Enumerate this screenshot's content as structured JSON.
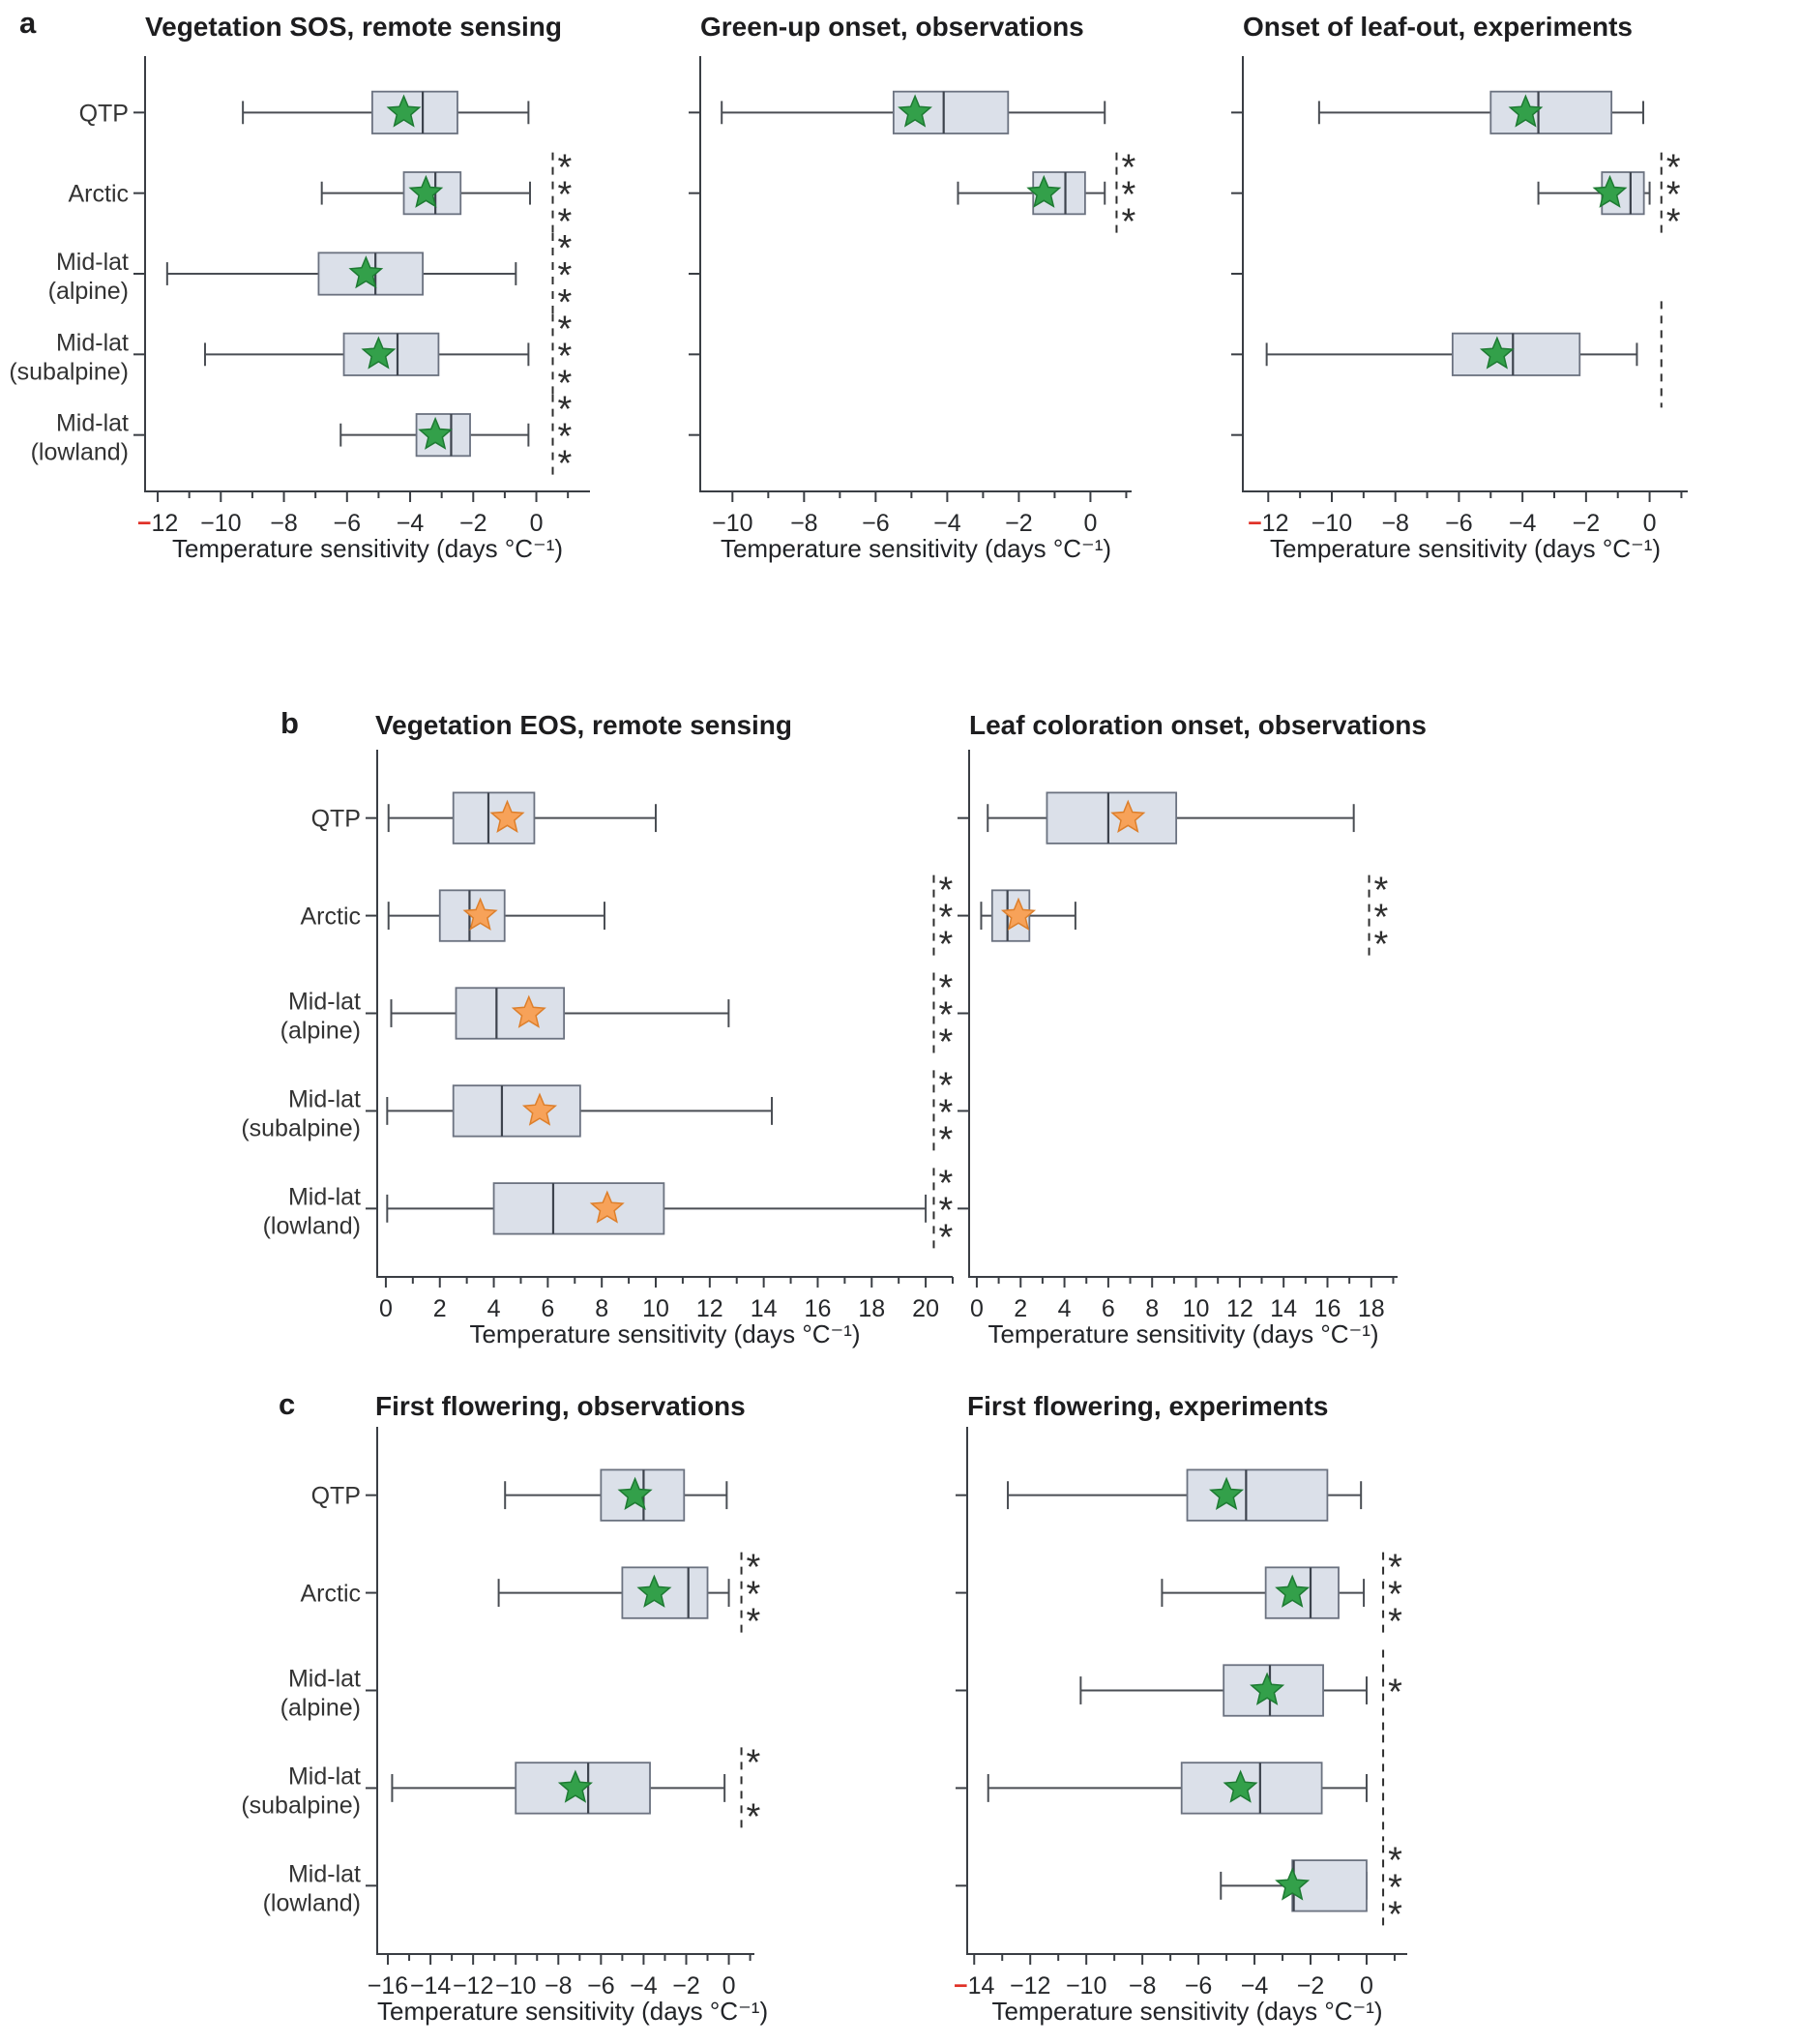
{
  "figure": {
    "panel_labels": [
      "a",
      "b",
      "c"
    ]
  },
  "colors": {
    "box_fill": "#dbe0e9",
    "box_edge": "#6b7280",
    "median": "#3d434d",
    "whisker": "#4a4e54",
    "axis": "#3a3e44",
    "tick_text": "#26282b",
    "label_text": "#333333",
    "green_fill": "#33a04a",
    "green_edge": "#1d7a32",
    "orange_fill": "#f7a259",
    "orange_edge": "#dd7f2b",
    "red": "#e03127",
    "sig": "#2e2e2e"
  },
  "chart_data": [
    {
      "type": "boxplot-horizontal",
      "panel": "a",
      "title": "Vegetation SOS, remote sensing",
      "xlabel": "Temperature sensitivity (days °C⁻¹)",
      "star_color": "green",
      "show_category_labels": true,
      "categories": [
        [
          "QTP"
        ],
        [
          "Arctic"
        ],
        [
          "Mid-lat",
          "(alpine)"
        ],
        [
          "Mid-lat",
          "(subalpine)"
        ],
        [
          "Mid-lat",
          "(lowland)"
        ]
      ],
      "axis": {
        "min": -12.4,
        "max": 1.7,
        "ticks": [
          -12,
          -10,
          -8,
          -6,
          -4,
          -2,
          0
        ],
        "red_first_minus": true
      },
      "sig_x": 0.52,
      "rows": [
        {
          "lo": -9.3,
          "q1": -5.2,
          "med": -3.6,
          "mean": -4.2,
          "q3": -2.5,
          "hi": -0.25,
          "sig": null
        },
        {
          "lo": -6.8,
          "q1": -4.2,
          "med": -3.2,
          "mean": -3.5,
          "q3": -2.4,
          "hi": -0.2,
          "sig": 3
        },
        {
          "lo": -11.7,
          "q1": -6.9,
          "med": -5.1,
          "mean": -5.4,
          "q3": -3.6,
          "hi": -0.65,
          "sig": 3
        },
        {
          "lo": -10.5,
          "q1": -6.1,
          "med": -4.4,
          "mean": -5.0,
          "q3": -3.1,
          "hi": -0.25,
          "sig": 3
        },
        {
          "lo": -6.2,
          "q1": -3.8,
          "med": -2.7,
          "mean": -3.2,
          "q3": -2.1,
          "hi": -0.25,
          "sig": 3
        }
      ]
    },
    {
      "type": "boxplot-horizontal",
      "panel": "a",
      "title": "Green-up onset, observations",
      "xlabel": "Temperature sensitivity (days °C⁻¹)",
      "star_color": "green",
      "show_category_labels": false,
      "categories": [
        [
          "QTP"
        ],
        [
          "Arctic"
        ],
        [
          "Mid-lat",
          "(alpine)"
        ],
        [
          "Mid-lat",
          "(subalpine)"
        ],
        [
          "Mid-lat",
          "(lowland)"
        ]
      ],
      "axis": {
        "min": -10.9,
        "max": 1.15,
        "ticks": [
          -10,
          -8,
          -6,
          -4,
          -2,
          0
        ],
        "red_first_minus": false
      },
      "sig_x": 0.73,
      "rows": [
        {
          "lo": -10.3,
          "q1": -5.5,
          "med": -4.1,
          "mean": -4.9,
          "q3": -2.3,
          "hi": 0.4,
          "sig": null
        },
        {
          "lo": -3.7,
          "q1": -1.6,
          "med": -0.7,
          "mean": -1.3,
          "q3": -0.15,
          "hi": 0.4,
          "sig": 3
        },
        null,
        null,
        null
      ]
    },
    {
      "type": "boxplot-horizontal",
      "panel": "a",
      "title": "Onset of leaf-out, experiments",
      "xlabel": "Temperature sensitivity (days °C⁻¹)",
      "star_color": "green",
      "show_category_labels": false,
      "categories": [
        [
          "QTP"
        ],
        [
          "Arctic"
        ],
        [
          "Mid-lat",
          "(alpine)"
        ],
        [
          "Mid-lat",
          "(subalpine)"
        ],
        [
          "Mid-lat",
          "(lowland)"
        ]
      ],
      "axis": {
        "min": -12.8,
        "max": 1.2,
        "ticks": [
          -12,
          -10,
          -8,
          -6,
          -4,
          -2,
          0
        ],
        "red_first_minus": true
      },
      "sig_x": 0.37,
      "rows": [
        {
          "lo": -10.4,
          "q1": -5.0,
          "med": -3.5,
          "mean": -3.9,
          "q3": -1.2,
          "hi": -0.2,
          "sig": null
        },
        {
          "lo": -3.5,
          "q1": -1.5,
          "med": -0.6,
          "mean": -1.25,
          "q3": -0.18,
          "hi": 0.0,
          "sig": 3
        },
        null,
        {
          "lo": -12.05,
          "q1": -6.2,
          "med": -4.3,
          "mean": -4.8,
          "q3": -2.2,
          "hi": -0.4,
          "sig": 0
        },
        null
      ]
    },
    {
      "type": "boxplot-horizontal",
      "panel": "b",
      "title": "Vegetation EOS, remote sensing",
      "xlabel": "Temperature sensitivity (days °C⁻¹)",
      "star_color": "orange",
      "show_category_labels": true,
      "categories": [
        [
          "QTP"
        ],
        [
          "Arctic"
        ],
        [
          "Mid-lat",
          "(alpine)"
        ],
        [
          "Mid-lat",
          "(subalpine)"
        ],
        [
          "Mid-lat",
          "(lowland)"
        ]
      ],
      "axis": {
        "min": -0.32,
        "max": 21.0,
        "ticks": [
          0,
          2,
          4,
          6,
          8,
          10,
          12,
          14,
          16,
          18,
          20
        ],
        "red_first_minus": false
      },
      "sig_x": 20.3,
      "rows": [
        {
          "lo": 0.1,
          "q1": 2.5,
          "med": 3.8,
          "mean": 4.5,
          "q3": 5.5,
          "hi": 10.0,
          "sig": null
        },
        {
          "lo": 0.1,
          "q1": 2.0,
          "med": 3.1,
          "mean": 3.5,
          "q3": 4.4,
          "hi": 8.1,
          "sig": 3
        },
        {
          "lo": 0.2,
          "q1": 2.6,
          "med": 4.1,
          "mean": 5.3,
          "q3": 6.6,
          "hi": 12.7,
          "sig": 3
        },
        {
          "lo": 0.05,
          "q1": 2.5,
          "med": 4.3,
          "mean": 5.7,
          "q3": 7.2,
          "hi": 14.3,
          "sig": 3
        },
        {
          "lo": 0.05,
          "q1": 4.0,
          "med": 6.2,
          "mean": 8.2,
          "q3": 10.3,
          "hi": 20.0,
          "sig": 3
        }
      ]
    },
    {
      "type": "boxplot-horizontal",
      "panel": "b",
      "title": "Leaf coloration onset, observations",
      "xlabel": "Temperature sensitivity (days °C⁻¹)",
      "star_color": "orange",
      "show_category_labels": false,
      "categories": [
        [
          "QTP"
        ],
        [
          "Arctic"
        ],
        [
          "Mid-lat",
          "(alpine)"
        ],
        [
          "Mid-lat",
          "(subalpine)"
        ],
        [
          "Mid-lat",
          "(lowland)"
        ]
      ],
      "axis": {
        "min": -0.35,
        "max": 19.2,
        "ticks": [
          0,
          2,
          4,
          6,
          8,
          10,
          12,
          14,
          16,
          18
        ],
        "red_first_minus": false
      },
      "sig_x": 17.9,
      "rows": [
        {
          "lo": 0.5,
          "q1": 3.2,
          "med": 6.0,
          "mean": 6.9,
          "q3": 9.1,
          "hi": 17.2,
          "sig": null
        },
        {
          "lo": 0.2,
          "q1": 0.7,
          "med": 1.4,
          "mean": 1.9,
          "q3": 2.4,
          "hi": 4.5,
          "sig": 3
        },
        null,
        null,
        null
      ]
    },
    {
      "type": "boxplot-horizontal",
      "panel": "c",
      "title": "First flowering, observations",
      "xlabel": "Temperature sensitivity (days °C⁻¹)",
      "star_color": "green",
      "show_category_labels": true,
      "categories": [
        [
          "QTP"
        ],
        [
          "Arctic"
        ],
        [
          "Mid-lat",
          "(alpine)"
        ],
        [
          "Mid-lat",
          "(subalpine)"
        ],
        [
          "Mid-lat",
          "(lowland)"
        ]
      ],
      "axis": {
        "min": -16.5,
        "max": 1.2,
        "ticks": [
          -16,
          -14,
          -12,
          -10,
          -8,
          -6,
          -4,
          -2,
          0
        ],
        "red_first_minus": false
      },
      "sig_x": 0.59,
      "rows": [
        {
          "lo": -10.5,
          "q1": -6.0,
          "med": -4.0,
          "mean": -4.4,
          "q3": -2.1,
          "hi": -0.1,
          "sig": null
        },
        {
          "lo": -10.8,
          "q1": -5.0,
          "med": -1.9,
          "mean": -3.5,
          "q3": -1.0,
          "hi": 0.0,
          "sig": 3
        },
        null,
        {
          "lo": -15.8,
          "q1": -10.0,
          "med": -6.6,
          "mean": -7.2,
          "q3": -3.7,
          "hi": -0.2,
          "sig": 2
        },
        null
      ]
    },
    {
      "type": "boxplot-horizontal",
      "panel": "c",
      "title": "First flowering, experiments",
      "xlabel": "Temperature sensitivity (days °C⁻¹)",
      "star_color": "green",
      "show_category_labels": false,
      "categories": [
        [
          "QTP"
        ],
        [
          "Arctic"
        ],
        [
          "Mid-lat",
          "(alpine)"
        ],
        [
          "Mid-lat",
          "(subalpine)"
        ],
        [
          "Mid-lat",
          "(lowland)"
        ]
      ],
      "axis": {
        "min": -14.25,
        "max": 1.45,
        "ticks": [
          -14,
          -12,
          -10,
          -8,
          -6,
          -4,
          -2,
          0
        ],
        "red_first_minus": true
      },
      "sig_x": 0.59,
      "rows": [
        {
          "lo": -12.8,
          "q1": -6.4,
          "med": -4.3,
          "mean": -5.0,
          "q3": -1.4,
          "hi": -0.2,
          "sig": null
        },
        {
          "lo": -7.3,
          "q1": -3.6,
          "med": -2.0,
          "mean": -2.65,
          "q3": -1.0,
          "hi": -0.1,
          "sig": 3
        },
        {
          "lo": -10.2,
          "q1": -5.1,
          "med": -3.45,
          "mean": -3.55,
          "q3": -1.55,
          "hi": 0.0,
          "sig": 1
        },
        {
          "lo": -13.5,
          "q1": -6.6,
          "med": -3.8,
          "mean": -4.5,
          "q3": -1.6,
          "hi": 0.0,
          "sig": 0
        },
        {
          "lo": -5.2,
          "q1": -2.65,
          "med": -2.6,
          "mean": -2.65,
          "q3": 0.0,
          "hi": 0.0,
          "sig": 3
        }
      ]
    }
  ]
}
